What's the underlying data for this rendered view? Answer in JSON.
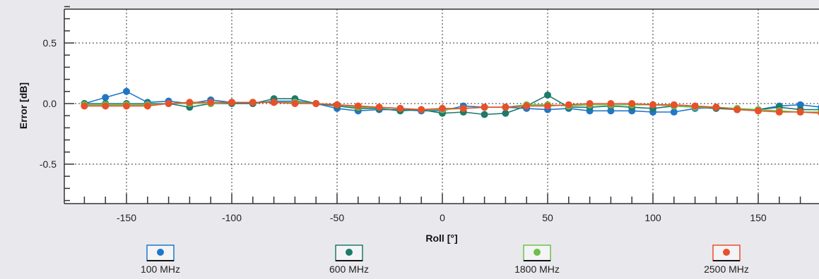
{
  "chart_data": {
    "type": "line",
    "xlabel": "Roll [°]",
    "ylabel": "Error [dB]",
    "xlim": [
      -175,
      180
    ],
    "ylim": [
      -0.8,
      0.8
    ],
    "xticks": [
      -150,
      -100,
      -50,
      0,
      50,
      100,
      150
    ],
    "yticks": [
      0.5,
      0.0,
      -0.5
    ],
    "ytick_labels": [
      "0.5",
      "0.0",
      "-0.5"
    ],
    "grid": true,
    "legend_position": "bottom",
    "x": [
      -170,
      -160,
      -150,
      -140,
      -130,
      -120,
      -110,
      -100,
      -90,
      -80,
      -70,
      -60,
      -50,
      -40,
      -30,
      -20,
      -10,
      0,
      10,
      20,
      30,
      40,
      50,
      60,
      70,
      80,
      90,
      100,
      110,
      120,
      130,
      140,
      150,
      160,
      170,
      180
    ],
    "series": [
      {
        "name": "100 MHz",
        "color": "#1f77c8",
        "values": [
          0.0,
          0.05,
          0.1,
          0.01,
          0.02,
          0.0,
          0.03,
          0.01,
          0.0,
          0.02,
          0.02,
          0.0,
          -0.04,
          -0.06,
          -0.05,
          -0.05,
          -0.06,
          -0.06,
          -0.02,
          -0.03,
          -0.03,
          -0.04,
          -0.05,
          -0.04,
          -0.06,
          -0.06,
          -0.06,
          -0.07,
          -0.07,
          -0.04,
          -0.03,
          -0.05,
          -0.05,
          -0.02,
          -0.01,
          -0.03
        ]
      },
      {
        "name": "600 MHz",
        "color": "#1e7a6a",
        "values": [
          0.0,
          0.0,
          0.0,
          0.0,
          0.0,
          -0.03,
          0.0,
          0.0,
          0.0,
          0.04,
          0.04,
          0.0,
          -0.02,
          -0.04,
          -0.04,
          -0.06,
          -0.05,
          -0.08,
          -0.07,
          -0.09,
          -0.08,
          -0.02,
          0.07,
          -0.03,
          -0.03,
          -0.02,
          -0.03,
          -0.04,
          -0.02,
          -0.03,
          -0.04,
          -0.05,
          -0.05,
          -0.03,
          -0.05,
          -0.05
        ]
      },
      {
        "name": "1800 MHz",
        "color": "#6cc04a",
        "values": [
          -0.01,
          -0.01,
          -0.01,
          -0.01,
          0.0,
          0.0,
          0.0,
          0.01,
          0.01,
          0.01,
          0.01,
          0.0,
          -0.01,
          -0.03,
          -0.03,
          -0.04,
          -0.05,
          -0.05,
          -0.04,
          -0.03,
          -0.03,
          -0.01,
          -0.01,
          -0.02,
          -0.01,
          -0.01,
          -0.01,
          -0.01,
          -0.02,
          -0.03,
          -0.03,
          -0.04,
          -0.05,
          -0.06,
          -0.07,
          -0.07
        ]
      },
      {
        "name": "2500 MHz",
        "color": "#e8502a",
        "values": [
          -0.02,
          -0.02,
          -0.02,
          -0.02,
          0.0,
          0.01,
          0.01,
          0.01,
          0.01,
          0.01,
          0.0,
          0.0,
          -0.01,
          -0.02,
          -0.03,
          -0.04,
          -0.05,
          -0.04,
          -0.04,
          -0.03,
          -0.03,
          -0.02,
          -0.02,
          -0.01,
          0.0,
          0.0,
          0.0,
          -0.01,
          -0.01,
          -0.02,
          -0.03,
          -0.05,
          -0.06,
          -0.07,
          -0.07,
          -0.08
        ]
      }
    ]
  }
}
